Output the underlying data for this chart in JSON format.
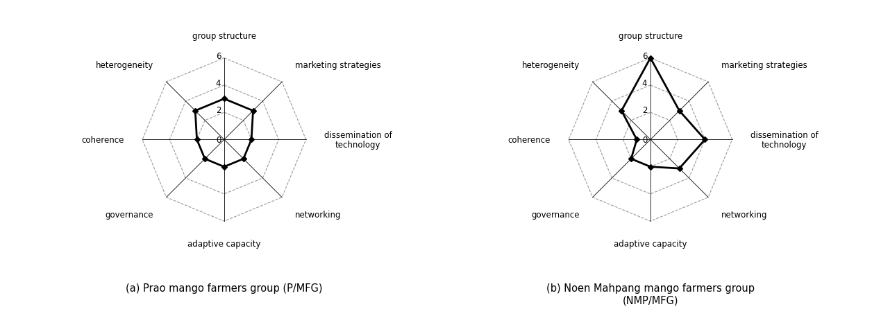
{
  "categories": [
    "group structure",
    "marketing strategies",
    "dissemination of\ntechnology",
    "networking",
    "adaptive capacity",
    "governance",
    "coherence",
    "heterogeneity"
  ],
  "chart1": {
    "values": [
      3,
      3,
      2,
      2,
      2,
      2,
      2,
      3
    ],
    "title": "(a) Prao mango farmers group (P/MFG)"
  },
  "chart2": {
    "values": [
      6,
      3,
      4,
      3,
      2,
      2,
      1,
      3
    ],
    "title": "(b) Noen Mahpang mango farmers group\n(NMP/MFG)"
  },
  "max_val": 6,
  "grid_vals": [
    0,
    2,
    4,
    6
  ],
  "color_data": "black",
  "color_grid": "#999999",
  "color_bg": "white",
  "label_fontsize": 8.5,
  "tick_fontsize": 8.5,
  "title_fontsize": 10.5
}
